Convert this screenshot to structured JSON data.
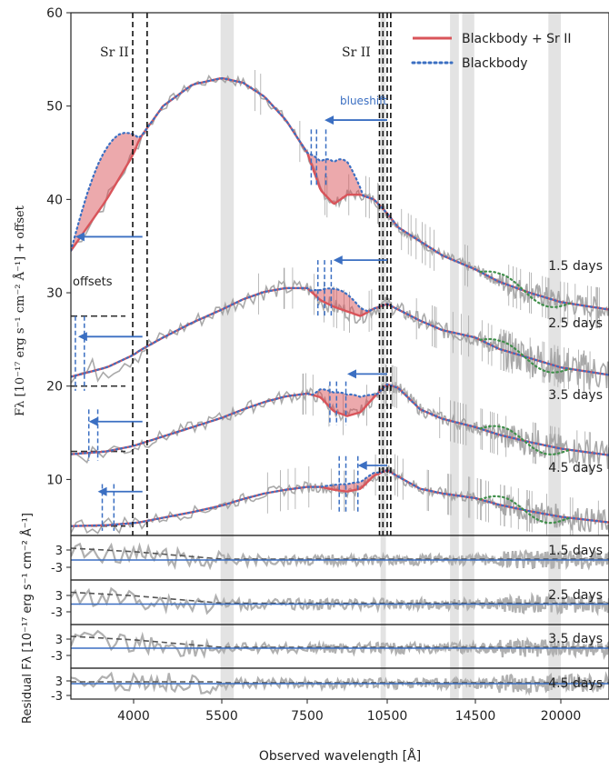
{
  "chart_data": [
    {
      "type": "line",
      "panel": "spectra",
      "ylabel": "Fλ [10⁻¹⁷ erg s⁻¹ cm⁻² Å⁻¹] + offset",
      "ylim": [
        4,
        60
      ],
      "yticks": [
        10,
        20,
        30,
        40,
        50,
        60
      ],
      "xticks": [
        "4000",
        "5500",
        "7500",
        "10500",
        "14500",
        "20000"
      ],
      "line_labels": [
        "Sr II",
        "Sr II"
      ],
      "annotations": [
        "blueshift",
        "offsets"
      ],
      "legend": {
        "position": "top-right",
        "entries": [
          {
            "label": "Blackbody + Sr II",
            "color": "#d9545a",
            "style": "solid"
          },
          {
            "label": "Blackbody",
            "color": "#3b6fc2",
            "style": "dotted"
          }
        ]
      },
      "series": [
        {
          "name": "1.5 days",
          "x": [
            3300,
            3700,
            4100,
            4500,
            5000,
            5500,
            6000,
            6500,
            7000,
            7500,
            8000,
            8500,
            9000,
            9500,
            10000,
            10500,
            11000,
            12000,
            13000,
            14500,
            16000,
            18000,
            20000,
            22500
          ],
          "y": [
            34.5,
            40.0,
            46.5,
            50.0,
            52.3,
            53.0,
            52.5,
            51.0,
            48.5,
            45.0,
            41.0,
            39.5,
            40.5,
            40.5,
            40.0,
            38.5,
            37.0,
            35.5,
            34.0,
            32.5,
            31.2,
            30.0,
            29.0,
            28.2
          ]
        },
        {
          "name": "2.5 days",
          "x": [
            3300,
            3700,
            4100,
            4500,
            5000,
            5500,
            6000,
            6500,
            7000,
            7500,
            8000,
            8500,
            9000,
            9500,
            10000,
            10500,
            11000,
            12000,
            13000,
            14500,
            16000,
            18000,
            20000,
            22500
          ],
          "y": [
            21.0,
            22.0,
            23.8,
            25.2,
            26.8,
            28.2,
            29.3,
            30.1,
            30.5,
            30.5,
            29.2,
            28.5,
            28.0,
            27.5,
            28.3,
            28.8,
            28.2,
            27.0,
            26.0,
            25.2,
            24.0,
            23.0,
            22.0,
            21.2
          ]
        },
        {
          "name": "3.5 days",
          "x": [
            3300,
            3700,
            4100,
            4500,
            5000,
            5500,
            6000,
            6500,
            7000,
            7500,
            8000,
            8500,
            9000,
            9500,
            10000,
            10500,
            11000,
            12000,
            13000,
            14500,
            16000,
            18000,
            20000,
            22500
          ],
          "y": [
            12.7,
            13.0,
            13.8,
            14.6,
            15.6,
            16.6,
            17.5,
            18.3,
            18.9,
            19.2,
            18.8,
            17.3,
            16.8,
            17.2,
            18.8,
            20.2,
            19.8,
            17.5,
            16.5,
            15.6,
            14.8,
            14.0,
            13.3,
            12.6
          ]
        },
        {
          "name": "4.5 days",
          "x": [
            3300,
            3700,
            4100,
            4500,
            5000,
            5500,
            6000,
            6500,
            7000,
            7500,
            8000,
            8500,
            9000,
            9500,
            10000,
            10500,
            11000,
            12000,
            13000,
            14500,
            16000,
            18000,
            20000,
            22500
          ],
          "y": [
            5.0,
            5.1,
            5.4,
            5.9,
            6.5,
            7.2,
            7.9,
            8.5,
            8.9,
            9.2,
            9.2,
            8.9,
            8.7,
            9.0,
            10.4,
            11.0,
            10.3,
            9.0,
            8.5,
            8.0,
            7.3,
            6.6,
            6.0,
            5.4
          ]
        }
      ]
    },
    {
      "type": "line",
      "panel": "residuals",
      "ylabel": "Residual Fλ [10⁻¹⁷ erg s⁻¹ cm⁻² Å⁻¹]",
      "xlabel": "Observed wavelength [Å]",
      "xticks": [
        "4000",
        "5500",
        "7500",
        "10500",
        "14500",
        "20000"
      ],
      "yticks": [
        "3",
        "-3"
      ],
      "panels": [
        "1.5 days",
        "2.5 days",
        "3.5 days",
        "4.5 days"
      ]
    }
  ]
}
